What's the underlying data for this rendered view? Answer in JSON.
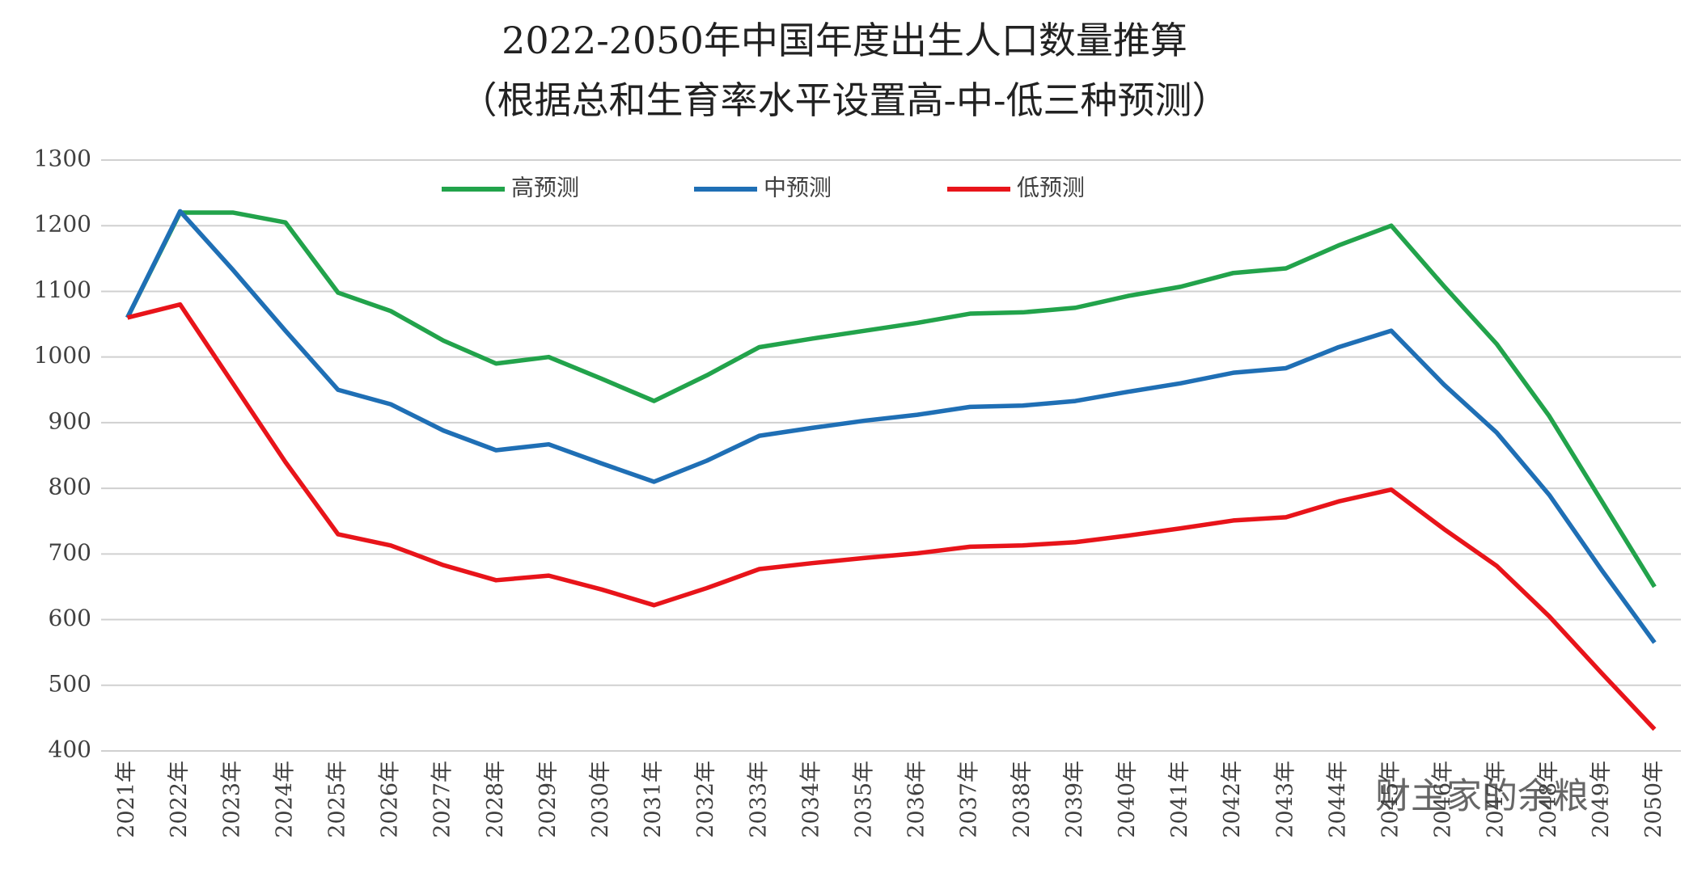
{
  "chart_data": {
    "type": "line",
    "title": "2022-2050年中国年度出生人口数量推算",
    "subtitle": "（根据总和生育率水平设置高-中-低三种预测）",
    "watermark": "财主家的余粮",
    "categories": [
      "2021年",
      "2022年",
      "2023年",
      "2024年",
      "2025年",
      "2026年",
      "2027年",
      "2028年",
      "2029年",
      "2030年",
      "2031年",
      "2032年",
      "2033年",
      "2034年",
      "2035年",
      "2036年",
      "2037年",
      "2038年",
      "2039年",
      "2040年",
      "2041年",
      "2042年",
      "2043年",
      "2044年",
      "2045年",
      "2046年",
      "2047年",
      "2048年",
      "2049年",
      "2050年"
    ],
    "series": [
      {
        "name": "高预测",
        "color": "#22a34b",
        "values": [
          1060,
          1220,
          1220,
          1205,
          1098,
          1070,
          1025,
          990,
          1000,
          967,
          933,
          972,
          1015,
          1028,
          1040,
          1052,
          1066,
          1068,
          1075,
          1093,
          1107,
          1128,
          1135,
          1170,
          1200,
          1108,
          1020,
          910,
          780,
          650
        ]
      },
      {
        "name": "中预测",
        "color": "#1f6fb5",
        "values": [
          1060,
          1222,
          1133,
          1040,
          950,
          928,
          888,
          858,
          867,
          838,
          810,
          842,
          880,
          892,
          903,
          912,
          924,
          926,
          933,
          947,
          960,
          976,
          983,
          1015,
          1040,
          958,
          885,
          790,
          675,
          565
        ]
      },
      {
        "name": "低预测",
        "color": "#e8141a",
        "values": [
          1060,
          1080,
          960,
          840,
          730,
          713,
          683,
          660,
          667,
          646,
          622,
          648,
          677,
          686,
          694,
          701,
          711,
          713,
          718,
          728,
          739,
          751,
          756,
          780,
          798,
          738,
          682,
          605,
          518,
          433
        ]
      }
    ],
    "ylim": [
      400,
      1300
    ],
    "yticks": [
      400,
      500,
      600,
      700,
      800,
      900,
      1000,
      1100,
      1200,
      1300
    ],
    "grid": true,
    "legend": "top"
  }
}
